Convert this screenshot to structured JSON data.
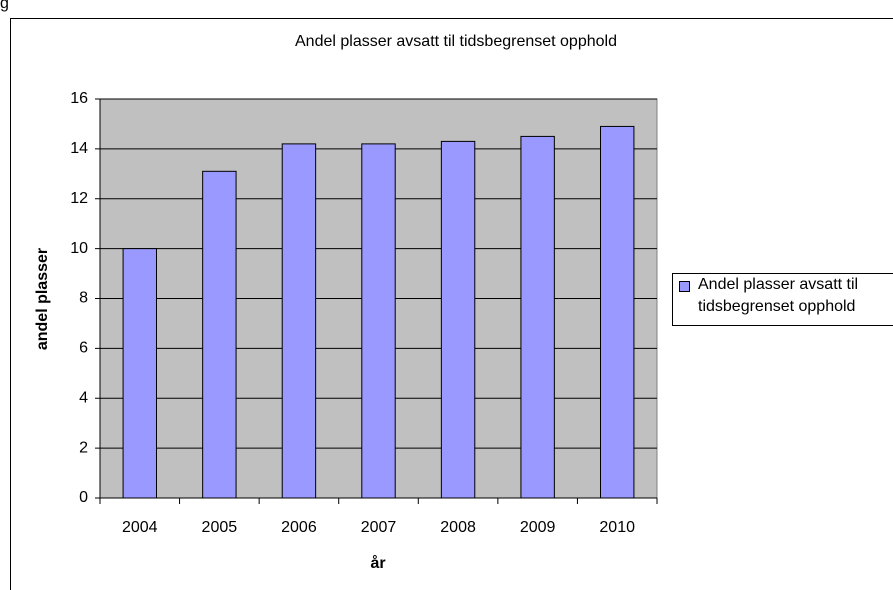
{
  "fragment": "g",
  "chart_data": {
    "type": "bar",
    "title": "Andel plasser avsatt til tidsbegrenset opphold",
    "x_label": "år",
    "y_label": "andel plasser",
    "categories": [
      "2004",
      "2005",
      "2006",
      "2007",
      "2008",
      "2009",
      "2010"
    ],
    "series": [
      {
        "name": "Andel plasser avsatt til tidsbegrenset opphold",
        "color": "#9999ff",
        "values": [
          10,
          13.1,
          14.2,
          14.2,
          14.3,
          14.5,
          14.9
        ]
      }
    ],
    "ylim": [
      0,
      16
    ],
    "yticks": [
      0,
      2,
      4,
      6,
      8,
      10,
      12,
      14,
      16
    ],
    "grid": true,
    "legend": "right"
  }
}
